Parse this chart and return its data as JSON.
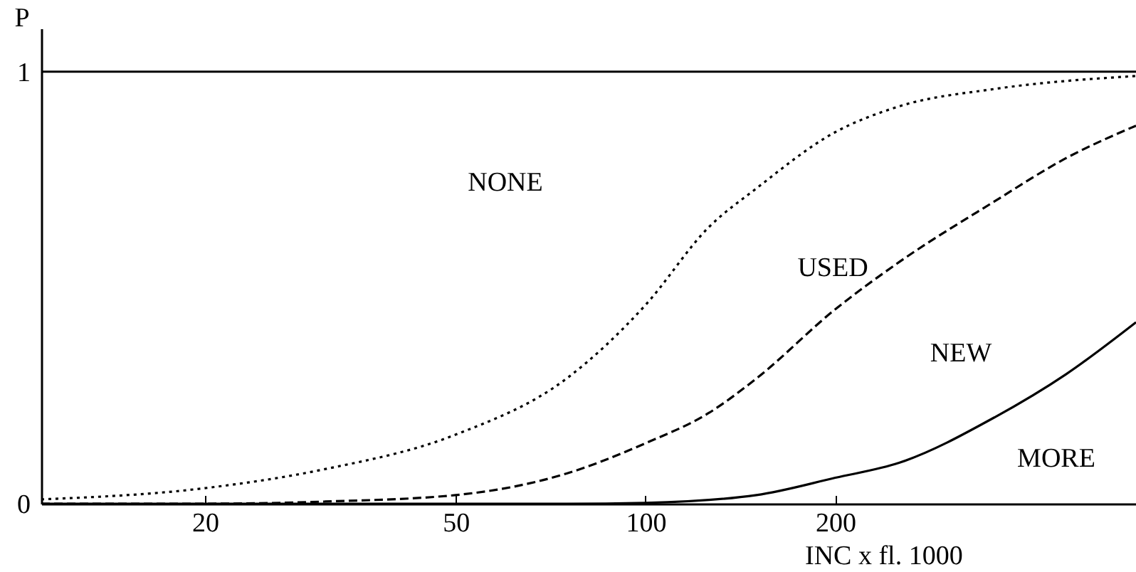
{
  "chart_data": {
    "type": "line",
    "xlabel": "INC x fl. 1000",
    "ylabel": "P",
    "log": "x",
    "xlim": [
      11,
      600
    ],
    "xticks": [
      20,
      50,
      100,
      200
    ],
    "ylim": [
      0,
      1.1
    ],
    "yticks": [
      0,
      1
    ],
    "grid": false,
    "marker": "none",
    "ref_lines": [
      {
        "axis": "y",
        "value": 1,
        "color": "#000000",
        "line_style": "solid"
      }
    ],
    "annotations": [
      "NONE",
      "USED",
      "NEW",
      "MORE"
    ],
    "series": [
      {
        "color": "#000000",
        "line_style": "dotted",
        "x": [
          11,
          20,
          31,
          50,
          75,
          100,
          126,
          150,
          200,
          253,
          358,
          600
        ],
        "values": [
          0.01,
          0.036,
          0.08,
          0.16,
          0.29,
          0.46,
          0.64,
          0.73,
          0.86,
          0.92,
          0.96,
          0.99
        ]
      },
      {
        "color": "#000000",
        "line_style": "dashed",
        "x": [
          11,
          20,
          31,
          50,
          75,
          100,
          126,
          150,
          200,
          253,
          358,
          465,
          600
        ],
        "values": [
          0,
          0,
          0.005,
          0.02,
          0.07,
          0.14,
          0.21,
          0.29,
          0.45,
          0.56,
          0.7,
          0.8,
          0.875
        ]
      },
      {
        "color": "#000000",
        "line_style": "solid",
        "x": [
          11,
          50,
          75,
          100,
          150,
          200,
          253,
          358,
          465,
          600
        ],
        "values": [
          0,
          0,
          0,
          0.002,
          0.02,
          0.06,
          0.095,
          0.2,
          0.3,
          0.42
        ]
      }
    ]
  }
}
